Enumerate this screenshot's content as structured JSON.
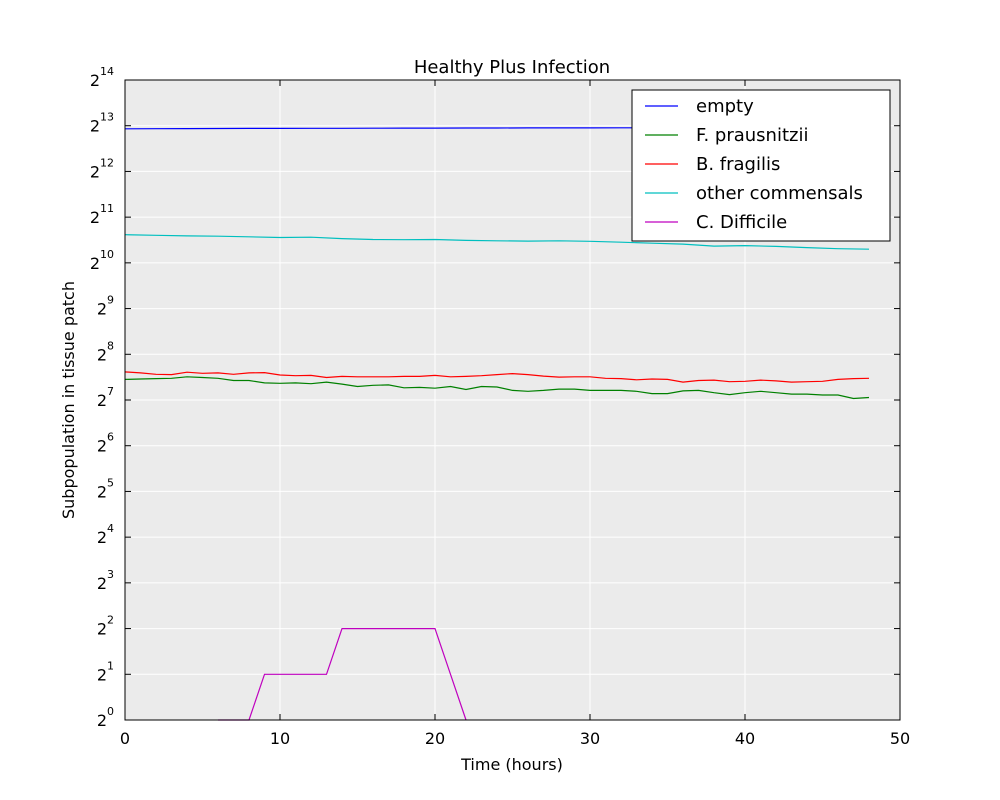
{
  "chart_data": {
    "type": "line",
    "title": "Healthy Plus Infection",
    "xlabel": "Time (hours)",
    "ylabel": "Subpopulation in tissue patch",
    "xlim": [
      0,
      50
    ],
    "ylim_log2": [
      0,
      14
    ],
    "y_scale": "log2",
    "grid": true,
    "legend_position": "top-right",
    "x_ticks": [
      0,
      10,
      20,
      30,
      40,
      50
    ],
    "y_ticks": [
      {
        "base": "2",
        "exp": "0"
      },
      {
        "base": "2",
        "exp": "1"
      },
      {
        "base": "2",
        "exp": "2"
      },
      {
        "base": "2",
        "exp": "3"
      },
      {
        "base": "2",
        "exp": "4"
      },
      {
        "base": "2",
        "exp": "5"
      },
      {
        "base": "2",
        "exp": "6"
      },
      {
        "base": "2",
        "exp": "7"
      },
      {
        "base": "2",
        "exp": "8"
      },
      {
        "base": "2",
        "exp": "9"
      },
      {
        "base": "2",
        "exp": "10"
      },
      {
        "base": "2",
        "exp": "11"
      },
      {
        "base": "2",
        "exp": "12"
      },
      {
        "base": "2",
        "exp": "13"
      },
      {
        "base": "2",
        "exp": "14"
      }
    ],
    "series": [
      {
        "name": "empty",
        "color": "#0000ff",
        "x": [
          0,
          2,
          4,
          6,
          8,
          10,
          12,
          14,
          16,
          18,
          20,
          22,
          24,
          26,
          28,
          30,
          32,
          34,
          36,
          38,
          40,
          42,
          44,
          46,
          48
        ],
        "y": [
          7820,
          7830,
          7840,
          7850,
          7860,
          7870,
          7875,
          7880,
          7890,
          7900,
          7905,
          7910,
          7915,
          7920,
          7925,
          7930,
          7935,
          7940,
          7945,
          7950,
          7955,
          7960,
          7965,
          7970,
          7975
        ]
      },
      {
        "name": "F. prausnitzii",
        "color": "#008000",
        "x": [
          0,
          1,
          2,
          3,
          4,
          5,
          6,
          7,
          8,
          9,
          10,
          11,
          12,
          13,
          14,
          15,
          16,
          17,
          18,
          19,
          20,
          21,
          22,
          23,
          24,
          25,
          26,
          27,
          28,
          29,
          30,
          31,
          32,
          33,
          34,
          35,
          36,
          37,
          38,
          39,
          40,
          41,
          42,
          43,
          44,
          45,
          46,
          47,
          48
        ],
        "y": [
          175,
          176,
          177,
          178,
          182,
          180,
          178,
          172,
          172,
          166,
          165,
          166,
          164,
          168,
          163,
          157,
          160,
          161,
          154,
          155,
          153,
          157,
          150,
          157,
          156,
          148,
          146,
          148,
          151,
          151,
          148,
          148,
          148,
          146,
          141,
          141,
          147,
          148,
          143,
          139,
          143,
          146,
          143,
          140,
          140,
          138,
          138,
          131,
          133
        ]
      },
      {
        "name": "B. fragilis",
        "color": "#ff0000",
        "x": [
          0,
          1,
          2,
          3,
          4,
          5,
          6,
          7,
          8,
          9,
          10,
          11,
          12,
          13,
          14,
          15,
          16,
          17,
          18,
          19,
          20,
          21,
          22,
          23,
          24,
          25,
          26,
          27,
          28,
          29,
          30,
          31,
          32,
          33,
          34,
          35,
          36,
          37,
          38,
          39,
          40,
          41,
          42,
          43,
          44,
          45,
          46,
          47,
          48
        ],
        "y": [
          196,
          193,
          189,
          188,
          195,
          192,
          193,
          189,
          193,
          194,
          187,
          185,
          186,
          180,
          183,
          182,
          182,
          182,
          183,
          183,
          186,
          182,
          183,
          185,
          188,
          191,
          188,
          184,
          181,
          182,
          182,
          178,
          177,
          174,
          176,
          175,
          168,
          172,
          173,
          169,
          170,
          173,
          171,
          168,
          169,
          170,
          175,
          177,
          178
        ]
      },
      {
        "name": "other commensals",
        "color": "#00bfbf",
        "x": [
          0,
          2,
          4,
          6,
          8,
          10,
          12,
          14,
          16,
          18,
          20,
          22,
          24,
          26,
          28,
          30,
          32,
          34,
          36,
          38,
          40,
          42,
          44,
          46,
          48
        ],
        "y": [
          1570,
          1555,
          1540,
          1535,
          1520,
          1505,
          1510,
          1480,
          1460,
          1455,
          1460,
          1440,
          1430,
          1425,
          1430,
          1420,
          1400,
          1380,
          1360,
          1320,
          1330,
          1315,
          1290,
          1270,
          1260
        ]
      },
      {
        "name": "C. Difficile",
        "color": "#bf00bf",
        "x": [
          6,
          8,
          9,
          13,
          14,
          20,
          21,
          22
        ],
        "y": [
          1,
          1,
          2,
          2,
          4,
          4,
          2,
          1
        ]
      }
    ]
  }
}
